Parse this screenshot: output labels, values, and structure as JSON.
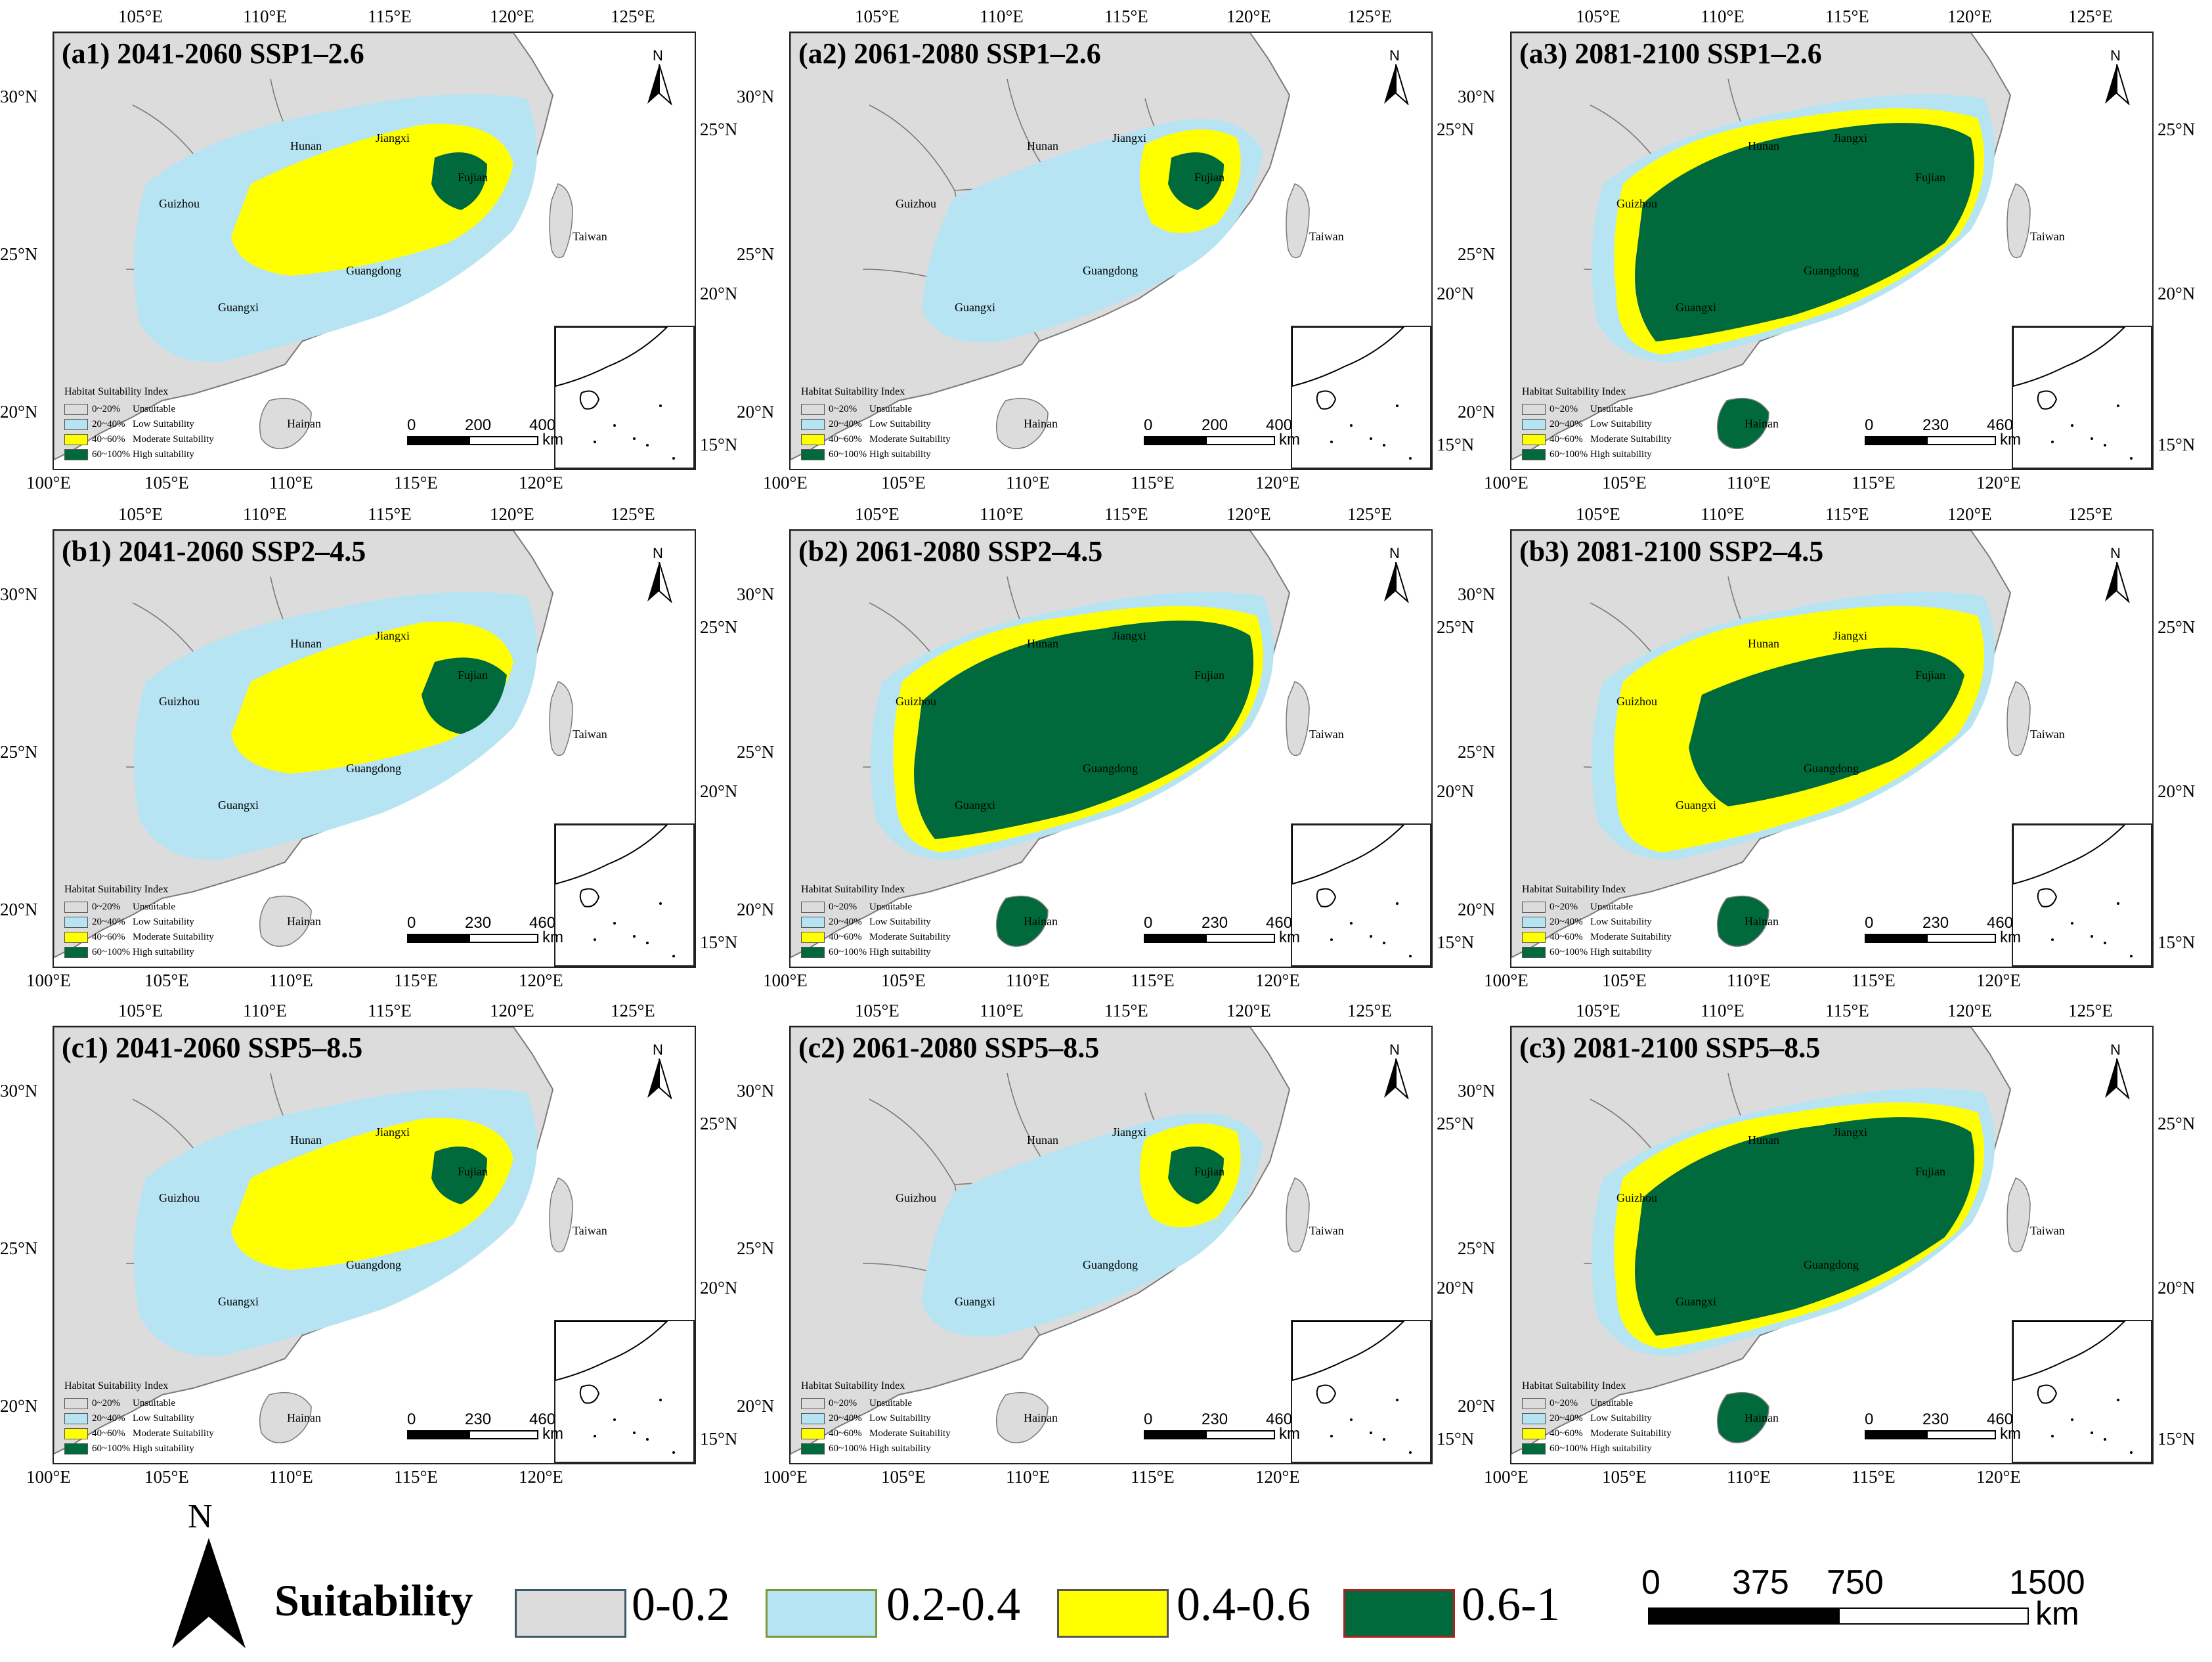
{
  "colors": {
    "unsuitable": "#dcdcdc",
    "low": "#b7e4f2",
    "moderate": "#ffff00",
    "high": "#006a3c",
    "border": "#7a7a7a"
  },
  "panels": [
    {
      "id": "a1",
      "title": "(a1) 2041-2060 SSP1–2.6",
      "scale": [
        "0",
        "200",
        "400"
      ],
      "row": 0,
      "col": 0,
      "intensity": 1
    },
    {
      "id": "a2",
      "title": "(a2) 2061-2080 SSP1–2.6",
      "scale": [
        "0",
        "200",
        "400"
      ],
      "row": 0,
      "col": 1,
      "intensity": 0
    },
    {
      "id": "a3",
      "title": "(a3) 2081-2100 SSP1–2.6",
      "scale": [
        "0",
        "230",
        "460"
      ],
      "row": 0,
      "col": 2,
      "intensity": 3
    },
    {
      "id": "b1",
      "title": "(b1) 2041-2060 SSP2–4.5",
      "scale": [
        "0",
        "230",
        "460"
      ],
      "row": 1,
      "col": 0,
      "intensity": 1
    },
    {
      "id": "b2",
      "title": "(b2) 2061-2080 SSP2–4.5",
      "scale": [
        "0",
        "230",
        "460"
      ],
      "row": 1,
      "col": 1,
      "intensity": 3
    },
    {
      "id": "b3",
      "title": "(b3) 2081-2100 SSP2–4.5",
      "scale": [
        "0",
        "230",
        "460"
      ],
      "row": 1,
      "col": 2,
      "intensity": 2
    },
    {
      "id": "c1",
      "title": "(c1) 2041-2060 SSP5–8.5",
      "scale": [
        "0",
        "230",
        "460"
      ],
      "row": 2,
      "col": 0,
      "intensity": 1
    },
    {
      "id": "c2",
      "title": "(c2) 2061-2080 SSP5–8.5",
      "scale": [
        "0",
        "230",
        "460"
      ],
      "row": 2,
      "col": 1,
      "intensity": 0
    },
    {
      "id": "c3",
      "title": "(c3) 2081-2100 SSP5–8.5",
      "scale": [
        "0",
        "230",
        "460"
      ],
      "row": 2,
      "col": 2,
      "intensity": 3
    }
  ],
  "map_labels": {
    "provinces": [
      "Hunan",
      "Jiangxi",
      "Fujian",
      "Guizhou",
      "Taiwan",
      "Guangdong",
      "Guangxi",
      "Hainan"
    ]
  },
  "ticks": {
    "top_lon": [
      "105°E",
      "110°E",
      "115°E",
      "120°E",
      "125°E"
    ],
    "bottom_lon": [
      "100°E",
      "105°E",
      "110°E",
      "115°E",
      "120°E"
    ],
    "left_lat": [
      "30°N",
      "25°N",
      "20°N"
    ],
    "right_lat": [
      "25°N",
      "20°N",
      "15°N"
    ]
  },
  "mini_legend": {
    "title": "Habitat Suitability Index",
    "rows": [
      {
        "pct": "0~20%",
        "label": "Unsuitable"
      },
      {
        "pct": "20~40%",
        "label": "Low Suitability"
      },
      {
        "pct": "40~60%",
        "label": "Moderate Suitability"
      },
      {
        "pct": "60~100%",
        "label": "High suitability"
      }
    ]
  },
  "panel_scale_unit": "km",
  "north_label": "N",
  "legend": {
    "title": "Suitability",
    "classes": [
      {
        "label": "0-0.2"
      },
      {
        "label": "0.2-0.4"
      },
      {
        "label": "0.4-0.6"
      },
      {
        "label": "0.6-1"
      }
    ],
    "scale_values": [
      "0",
      "375",
      "750",
      "1500"
    ],
    "scale_unit": "km"
  }
}
